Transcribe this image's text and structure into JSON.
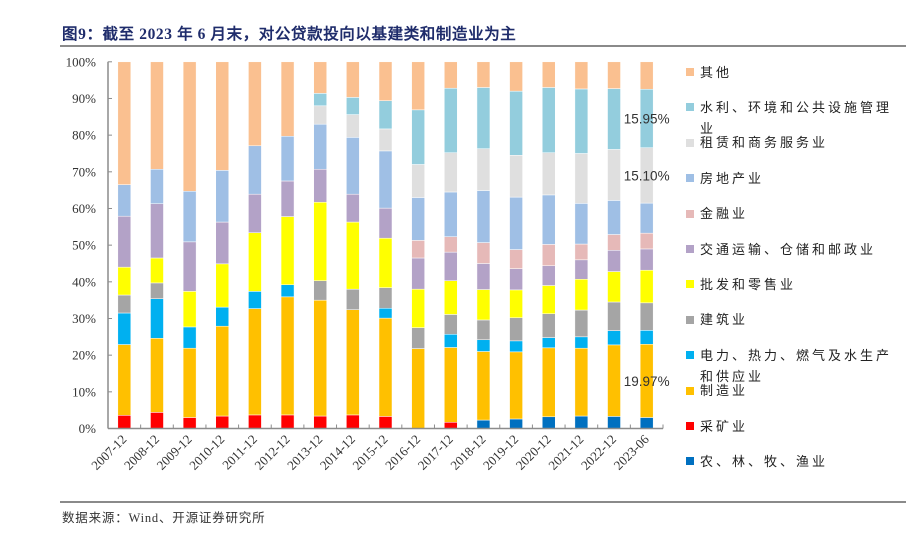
{
  "document": {
    "figure_title": "图9：截至 2023 年 6 月末，对公贷款投向以基建类和制造业为主",
    "source": "数据来源：Wind、开源证券研究所"
  },
  "chart_data": {
    "type": "bar",
    "stacked": true,
    "normalized": "100%",
    "title": "图9：截至 2023 年 6 月末，对公贷款投向以基建类和制造业为主",
    "xlabel": "",
    "ylabel": "",
    "ylim": [
      0,
      100
    ],
    "grid": false,
    "legend_position": "right",
    "yticks": {
      "values": [
        0,
        10,
        20,
        30,
        40,
        50,
        60,
        70,
        80,
        90,
        100
      ],
      "labels": [
        "0%",
        "10%",
        "20%",
        "30%",
        "40%",
        "50%",
        "60%",
        "70%",
        "80%",
        "90%",
        "100%"
      ]
    },
    "categories": [
      "2007-12",
      "2008-12",
      "2009-12",
      "2010-12",
      "2011-12",
      "2012-12",
      "2013-12",
      "2014-12",
      "2015-12",
      "2016-12",
      "2017-12",
      "2018-12",
      "2019-12",
      "2020-12",
      "2021-12",
      "2022-12",
      "2023-06"
    ],
    "series": [
      {
        "name": "农、林、牧、渔业",
        "color": "#0070C0",
        "values": [
          0,
          0,
          0,
          0,
          0,
          0,
          0,
          0,
          0,
          0,
          0,
          2.3,
          2.6,
          3.2,
          3.4,
          3.3,
          3.0
        ]
      },
      {
        "name": "采矿业",
        "color": "#FF0000",
        "values": [
          3.6,
          4.4,
          3.0,
          3.4,
          3.7,
          3.7,
          3.4,
          3.7,
          3.3,
          0,
          1.7,
          0,
          0,
          0,
          0,
          0,
          0
        ]
      },
      {
        "name": "制造业",
        "color": "#FFC000",
        "values": [
          19.3,
          20.2,
          18.9,
          24.5,
          29.0,
          32.2,
          31.6,
          28.7,
          26.8,
          21.8,
          20.4,
          18.7,
          18.3,
          18.8,
          18.5,
          19.5,
          19.97
        ]
      },
      {
        "name": "电力、热力、燃气及水生产和供应业",
        "color": "#00B0F0",
        "values": [
          8.6,
          10.8,
          5.8,
          5.2,
          4.7,
          3.3,
          0,
          0,
          2.7,
          0,
          3.6,
          3.2,
          3.0,
          2.8,
          3.1,
          3.9,
          3.8
        ]
      },
      {
        "name": "建筑业",
        "color": "#A5A5A5",
        "values": [
          4.9,
          4.3,
          0,
          0,
          0,
          0,
          5.3,
          5.6,
          5.6,
          5.7,
          5.4,
          5.4,
          6.3,
          6.5,
          7.3,
          7.8,
          7.5
        ]
      },
      {
        "name": "批发和零售业",
        "color": "#FFFF00",
        "values": [
          7.6,
          6.8,
          9.7,
          11.8,
          16.0,
          18.6,
          21.4,
          18.3,
          13.5,
          10.5,
          9.2,
          8.3,
          7.6,
          7.7,
          8.4,
          8.3,
          8.9
        ]
      },
      {
        "name": "交通运输、仓储和邮政业",
        "color": "#B3A2C7",
        "values": [
          13.9,
          14.8,
          13.5,
          11.4,
          10.5,
          9.7,
          9.0,
          7.6,
          8.2,
          8.5,
          7.8,
          7.1,
          5.8,
          5.4,
          5.3,
          5.8,
          5.8
        ]
      },
      {
        "name": "金融业",
        "color": "#E6B9B8",
        "values": [
          0,
          0,
          0,
          0,
          0,
          0,
          0,
          0,
          0,
          4.8,
          4.2,
          5.7,
          5.2,
          5.8,
          4.3,
          4.3,
          4.3
        ]
      },
      {
        "name": "房地产业",
        "color": "#9FBFE5",
        "values": [
          8.6,
          9.4,
          13.8,
          14.1,
          13.2,
          12.2,
          12.3,
          15.5,
          15.6,
          11.7,
          12.2,
          14.2,
          14.3,
          13.5,
          11.1,
          9.3,
          8.2
        ]
      },
      {
        "name": "租赁和商务服务业",
        "color": "#DFDFDF",
        "values": [
          0,
          0,
          0,
          0,
          0,
          0,
          5.0,
          6.2,
          6.0,
          9.0,
          10.7,
          11.4,
          11.4,
          11.5,
          13.6,
          13.9,
          15.1
        ]
      },
      {
        "name": "水利、环境和公共设施管理业",
        "color": "#93CDDD",
        "values": [
          0,
          0,
          0,
          0,
          0,
          0,
          3.4,
          4.7,
          7.7,
          14.9,
          17.6,
          16.7,
          17.5,
          17.8,
          17.6,
          16.6,
          15.95
        ]
      },
      {
        "name": "其他",
        "color": "#FAC090",
        "values": [
          33.5,
          29.3,
          35.3,
          29.6,
          22.9,
          20.3,
          8.6,
          9.7,
          10.6,
          13.1,
          7.2,
          7.0,
          8.0,
          7.0,
          7.4,
          7.3,
          7.48
        ]
      }
    ],
    "annotations": [
      {
        "category": "2023-06",
        "series": "水利、环境和公共设施管理业",
        "text": "15.95%"
      },
      {
        "category": "2023-06",
        "series": "租赁和商务服务业",
        "text": "15.10%"
      },
      {
        "category": "2023-06",
        "series": "制造业",
        "text": "19.97%"
      }
    ]
  }
}
